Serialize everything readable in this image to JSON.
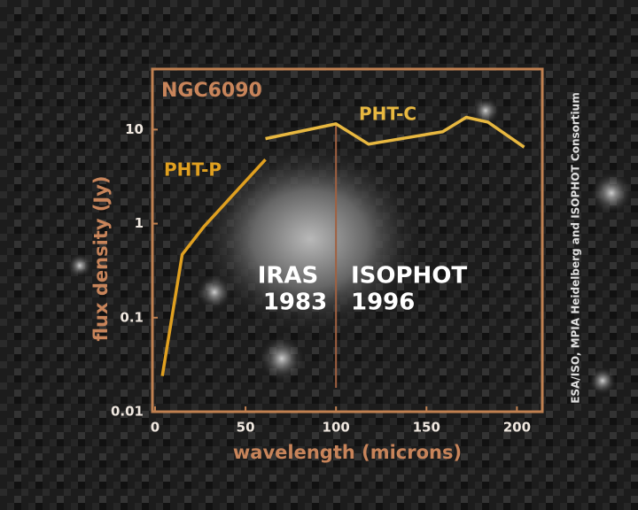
{
  "chart_data": {
    "type": "line",
    "title": "NGC6090",
    "x_label": "wavelength (microns)",
    "y_label": "flux density (Jy)",
    "credit": "ESA/ISO, MPIA Heidelberg and ISOPHOT Consortium",
    "annotations": [
      {
        "lines": [
          "IRAS",
          "1983"
        ]
      },
      {
        "lines": [
          "ISOPHOT",
          "1996"
        ]
      }
    ],
    "divider_x": 100,
    "xlim": [
      0,
      215
    ],
    "xticks": [
      0,
      50,
      100,
      150,
      200
    ],
    "ylim": [
      0.01,
      44
    ],
    "yticks": [
      0.01,
      0.1,
      1,
      10
    ],
    "log_y": true,
    "series": [
      {
        "name": "PHT-P",
        "color": "#e0a020",
        "x": [
          4,
          15,
          27,
          61
        ],
        "values": [
          0.024,
          0.47,
          0.93,
          4.8
        ]
      },
      {
        "name": "PHT-C",
        "color": "#e8b840",
        "x": [
          61,
          100,
          118,
          159,
          172,
          184,
          204
        ],
        "values": [
          8,
          11.5,
          7,
          9.5,
          13.5,
          12,
          6.5
        ]
      }
    ]
  }
}
